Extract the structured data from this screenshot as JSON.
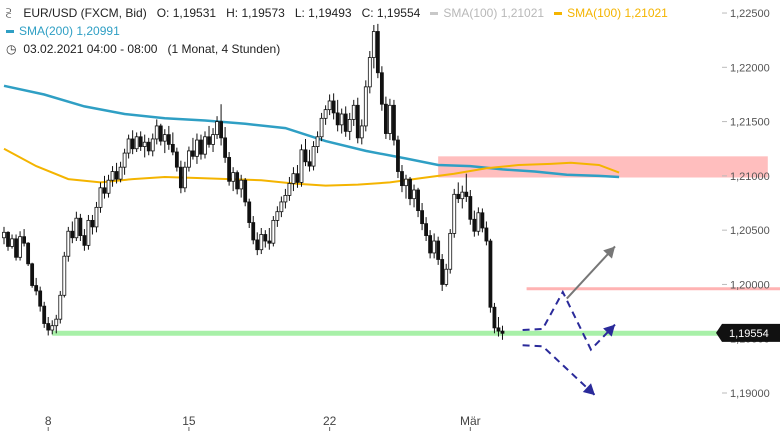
{
  "header": {
    "symbol_line": "EUR/USD (FXCM, Bid)",
    "open": "O: 1,19531",
    "high": "H: 1,19573",
    "low": "L: 1,19493",
    "close": "C: 1,19554",
    "sma100_gray": "SMA(100)",
    "sma100_gray_value": "1,21021",
    "sma100_orange": "SMA(100)",
    "sma100_orange_value": "1,21021",
    "sma200": "SMA(200)",
    "sma200_value": "1,20991",
    "date_range": "03.02.2021 04:00 - 08:00",
    "period": "(1 Monat, 4 Stunden)"
  },
  "icons": {
    "chart": "candle-chart-icon",
    "clock": "clock-icon"
  },
  "colors": {
    "candle": "#111111",
    "sma100": "#f4b400",
    "sma200": "#2f9fc4",
    "resistance_zone": "#ffb3b3",
    "support_line": "#a8f0a8",
    "projection": "#2a2a9a",
    "arrow_up": "#777777",
    "price_badge": "#111111"
  },
  "chart_data": {
    "type": "candlestick",
    "y_axis": {
      "ticks": [
        1.19,
        1.195,
        1.2,
        1.205,
        1.21,
        1.215,
        1.22,
        1.225
      ],
      "tick_labels": [
        "1,19000",
        "1,19500",
        "1,20000",
        "1,20500",
        "1,21000",
        "1,21500",
        "1,22000",
        "1,22500"
      ],
      "ylim": [
        1.1865,
        1.2262
      ]
    },
    "x_axis": {
      "tick_labels": [
        "8",
        "15",
        "22",
        "Mär"
      ],
      "tick_index": [
        11,
        46,
        81,
        116
      ]
    },
    "current_price": 1.19554,
    "current_price_label": "1,19554",
    "resistance_zone": {
      "from_index": 108,
      "to_index": 190,
      "low": 1.20985,
      "high": 1.2118
    },
    "resistance_line": {
      "from_index": 130,
      "to_index": 190,
      "value": 1.1996
    },
    "support_line": {
      "from_index": 12,
      "to_index": 190,
      "value": 1.1955
    },
    "sma100_points": [
      [
        0,
        1.2125
      ],
      [
        8,
        1.2109
      ],
      [
        16,
        1.2097
      ],
      [
        24,
        1.2094
      ],
      [
        32,
        1.2097
      ],
      [
        40,
        1.2099
      ],
      [
        48,
        1.2098
      ],
      [
        56,
        1.2097
      ],
      [
        64,
        1.2096
      ],
      [
        72,
        1.2093
      ],
      [
        80,
        1.2091
      ],
      [
        88,
        1.2092
      ],
      [
        96,
        1.2094
      ],
      [
        104,
        1.2098
      ],
      [
        112,
        1.2102
      ],
      [
        120,
        1.2107
      ],
      [
        128,
        1.211
      ],
      [
        136,
        1.2111
      ],
      [
        141,
        1.2112
      ],
      [
        148,
        1.211
      ],
      [
        153,
        1.2103
      ]
    ],
    "sma200_points": [
      [
        0,
        1.2183
      ],
      [
        10,
        1.2175
      ],
      [
        20,
        1.2164
      ],
      [
        30,
        1.2157
      ],
      [
        40,
        1.2153
      ],
      [
        50,
        1.2151
      ],
      [
        60,
        1.2148
      ],
      [
        70,
        1.2144
      ],
      [
        80,
        1.2132
      ],
      [
        90,
        1.2123
      ],
      [
        100,
        1.2116
      ],
      [
        108,
        1.211
      ],
      [
        116,
        1.2109
      ],
      [
        124,
        1.2106
      ],
      [
        132,
        1.2104
      ],
      [
        140,
        1.2101
      ],
      [
        148,
        1.21
      ],
      [
        153,
        1.2099
      ]
    ],
    "candles": [
      [
        1.2043,
        1.2053,
        1.2037,
        1.2048
      ],
      [
        1.2048,
        1.2049,
        1.2031,
        1.2035
      ],
      [
        1.2035,
        1.2046,
        1.2033,
        1.2042
      ],
      [
        1.2042,
        1.2046,
        1.2022,
        1.2025
      ],
      [
        1.2025,
        1.2049,
        1.2022,
        1.2044
      ],
      [
        1.2044,
        1.2051,
        1.2035,
        1.2038
      ],
      [
        1.2038,
        1.2039,
        1.2017,
        1.2019
      ],
      [
        1.2019,
        1.202,
        1.1997,
        1.1999
      ],
      [
        1.1999,
        1.2006,
        1.199,
        1.1994
      ],
      [
        1.1994,
        1.1998,
        1.1975,
        1.198
      ],
      [
        1.198,
        1.1984,
        1.196,
        1.1964
      ],
      [
        1.1964,
        1.197,
        1.1953,
        1.1958
      ],
      [
        1.1958,
        1.1967,
        1.1954,
        1.1962
      ],
      [
        1.1962,
        1.1972,
        1.1955,
        1.1968
      ],
      [
        1.1968,
        1.1994,
        1.1964,
        1.199
      ],
      [
        1.199,
        1.203,
        1.1988,
        1.2026
      ],
      [
        1.2026,
        1.2053,
        1.2021,
        1.2049
      ],
      [
        1.2049,
        1.2058,
        1.2038,
        1.2043
      ],
      [
        1.2043,
        1.2067,
        1.204,
        1.2061
      ],
      [
        1.2061,
        1.2065,
        1.204,
        1.2045
      ],
      [
        1.2045,
        1.2051,
        1.2031,
        1.2036
      ],
      [
        1.2036,
        1.2064,
        1.2032,
        1.2059
      ],
      [
        1.2059,
        1.2064,
        1.2046,
        1.2053
      ],
      [
        1.2053,
        1.2076,
        1.2048,
        1.2071
      ],
      [
        1.2071,
        1.2094,
        1.2066,
        1.2089
      ],
      [
        1.2089,
        1.21,
        1.2079,
        1.2084
      ],
      [
        1.2084,
        1.2101,
        1.208,
        1.2096
      ],
      [
        1.2096,
        1.2109,
        1.209,
        1.2104
      ],
      [
        1.2104,
        1.2112,
        1.2093,
        1.2097
      ],
      [
        1.2097,
        1.2113,
        1.2094,
        1.2108
      ],
      [
        1.2108,
        1.2125,
        1.2101,
        1.2121
      ],
      [
        1.2121,
        1.2138,
        1.2116,
        1.2134
      ],
      [
        1.2134,
        1.2142,
        1.212,
        1.2125
      ],
      [
        1.2125,
        1.214,
        1.2122,
        1.2136
      ],
      [
        1.2136,
        1.2141,
        1.2123,
        1.2127
      ],
      [
        1.2127,
        1.2138,
        1.2117,
        1.2131
      ],
      [
        1.2131,
        1.2135,
        1.2119,
        1.2123
      ],
      [
        1.2123,
        1.2139,
        1.2118,
        1.2134
      ],
      [
        1.2134,
        1.2152,
        1.2129,
        1.2146
      ],
      [
        1.2146,
        1.2148,
        1.2128,
        1.2132
      ],
      [
        1.2132,
        1.2143,
        1.2121,
        1.2138
      ],
      [
        1.2138,
        1.2146,
        1.2124,
        1.2129
      ],
      [
        1.2129,
        1.214,
        1.2119,
        1.2122
      ],
      [
        1.2122,
        1.2126,
        1.2104,
        1.2108
      ],
      [
        1.2108,
        1.2114,
        1.2084,
        1.2089
      ],
      [
        1.2089,
        1.2113,
        1.2085,
        1.2108
      ],
      [
        1.2108,
        1.2127,
        1.2104,
        1.2123
      ],
      [
        1.2123,
        1.2135,
        1.2115,
        1.2118
      ],
      [
        1.2118,
        1.2139,
        1.2111,
        1.2133
      ],
      [
        1.2133,
        1.2138,
        1.2115,
        1.212
      ],
      [
        1.212,
        1.2141,
        1.2116,
        1.2136
      ],
      [
        1.2136,
        1.2146,
        1.2126,
        1.2129
      ],
      [
        1.2129,
        1.2144,
        1.2122,
        1.2138
      ],
      [
        1.2138,
        1.2155,
        1.2134,
        1.215
      ],
      [
        1.215,
        1.2166,
        1.2128,
        1.2135
      ],
      [
        1.2135,
        1.2145,
        1.2112,
        1.2117
      ],
      [
        1.2117,
        1.2122,
        1.2091,
        1.2095
      ],
      [
        1.2095,
        1.2108,
        1.2086,
        1.2103
      ],
      [
        1.2103,
        1.2105,
        1.2083,
        1.2088
      ],
      [
        1.2088,
        1.2101,
        1.208,
        1.2096
      ],
      [
        1.2096,
        1.2098,
        1.2072,
        1.2076
      ],
      [
        1.2076,
        1.2079,
        1.2052,
        1.2057
      ],
      [
        1.2057,
        1.2063,
        1.2037,
        1.2041
      ],
      [
        1.2041,
        1.2048,
        1.2027,
        1.2032
      ],
      [
        1.2032,
        1.2052,
        1.2028,
        1.2046
      ],
      [
        1.2046,
        1.205,
        1.2034,
        1.204
      ],
      [
        1.204,
        1.2052,
        1.2032,
        1.2038
      ],
      [
        1.2038,
        1.2063,
        1.2035,
        1.2059
      ],
      [
        1.2059,
        1.2072,
        1.2053,
        1.2067
      ],
      [
        1.2067,
        1.2081,
        1.2062,
        1.2076
      ],
      [
        1.2076,
        1.2088,
        1.207,
        1.2082
      ],
      [
        1.2082,
        1.2099,
        1.2077,
        1.2093
      ],
      [
        1.2093,
        1.2108,
        1.2086,
        1.2102
      ],
      [
        1.2102,
        1.211,
        1.2089,
        1.2094
      ],
      [
        1.2094,
        1.2129,
        1.209,
        1.2124
      ],
      [
        1.2124,
        1.2134,
        1.2109,
        1.2113
      ],
      [
        1.2113,
        1.2124,
        1.2104,
        1.2109
      ],
      [
        1.2109,
        1.2132,
        1.2105,
        1.2127
      ],
      [
        1.2127,
        1.2141,
        1.2121,
        1.2136
      ],
      [
        1.2136,
        1.2158,
        1.2132,
        1.2153
      ],
      [
        1.2153,
        1.2165,
        1.2147,
        1.2161
      ],
      [
        1.2161,
        1.2175,
        1.2156,
        1.2169
      ],
      [
        1.2169,
        1.2176,
        1.2152,
        1.2158
      ],
      [
        1.2158,
        1.217,
        1.2141,
        1.2147
      ],
      [
        1.2147,
        1.2162,
        1.2139,
        1.2157
      ],
      [
        1.2157,
        1.2164,
        1.2136,
        1.2141
      ],
      [
        1.2141,
        1.2158,
        1.2133,
        1.2152
      ],
      [
        1.2152,
        1.217,
        1.2146,
        1.2165
      ],
      [
        1.2165,
        1.2172,
        1.213,
        1.2135
      ],
      [
        1.2135,
        1.2152,
        1.2129,
        1.2146
      ],
      [
        1.2146,
        1.2188,
        1.2141,
        1.2182
      ],
      [
        1.2182,
        1.2215,
        1.2176,
        1.2209
      ],
      [
        1.2209,
        1.2239,
        1.2199,
        1.2233
      ],
      [
        1.2233,
        1.224,
        1.219,
        1.2195
      ],
      [
        1.2195,
        1.2201,
        1.216,
        1.2166
      ],
      [
        1.2166,
        1.2173,
        1.2134,
        1.2139
      ],
      [
        1.2139,
        1.2171,
        1.2133,
        1.2165
      ],
      [
        1.2165,
        1.217,
        1.2128,
        1.2133
      ],
      [
        1.2133,
        1.2137,
        1.2098,
        1.2104
      ],
      [
        1.2104,
        1.211,
        1.2085,
        1.2091
      ],
      [
        1.2091,
        1.2101,
        1.2079,
        1.2097
      ],
      [
        1.2097,
        1.2099,
        1.2073,
        1.2079
      ],
      [
        1.2079,
        1.2092,
        1.2071,
        1.2087
      ],
      [
        1.2087,
        1.2089,
        1.2062,
        1.2068
      ],
      [
        1.2068,
        1.2075,
        1.205,
        1.2056
      ],
      [
        1.2056,
        1.2062,
        1.204,
        1.2045
      ],
      [
        1.2045,
        1.205,
        1.2024,
        1.2029
      ],
      [
        1.2029,
        1.2047,
        1.2024,
        1.204
      ],
      [
        1.204,
        1.2044,
        1.2018,
        1.2023
      ],
      [
        1.2023,
        1.2028,
        1.1994,
        1.2
      ],
      [
        1.2,
        1.2019,
        1.1998,
        1.2014
      ],
      [
        1.2014,
        1.2051,
        1.201,
        1.2047
      ],
      [
        1.2047,
        1.2088,
        1.2043,
        1.2083
      ],
      [
        1.2083,
        1.2094,
        1.2075,
        1.2079
      ],
      [
        1.2079,
        1.2091,
        1.207,
        1.2085
      ],
      [
        1.2085,
        1.2102,
        1.2076,
        1.2081
      ],
      [
        1.2081,
        1.2087,
        1.2055,
        1.206
      ],
      [
        1.206,
        1.2068,
        1.2044,
        1.2049
      ],
      [
        1.2049,
        1.2071,
        1.2045,
        1.2066
      ],
      [
        1.2066,
        1.207,
        1.2048,
        1.2052
      ],
      [
        1.2052,
        1.2058,
        1.2036,
        1.204
      ],
      [
        1.204,
        1.2042,
        1.1974,
        1.1979
      ],
      [
        1.1979,
        1.1983,
        1.1955,
        1.196
      ],
      [
        1.196,
        1.197,
        1.1952,
        1.1957
      ],
      [
        1.1957,
        1.1962,
        1.1949,
        1.1955
      ]
    ],
    "projection_up_path": [
      [
        129,
        1.1958
      ],
      [
        134,
        1.1959
      ],
      [
        139,
        1.1993
      ],
      [
        146,
        1.194
      ],
      [
        152,
        1.1963
      ]
    ],
    "projection_down_path": [
      [
        129,
        1.1944
      ],
      [
        134,
        1.1943
      ],
      [
        147,
        1.1898
      ]
    ],
    "arrow_up_path": [
      [
        140,
        1.1987
      ],
      [
        152,
        1.2035
      ]
    ]
  }
}
